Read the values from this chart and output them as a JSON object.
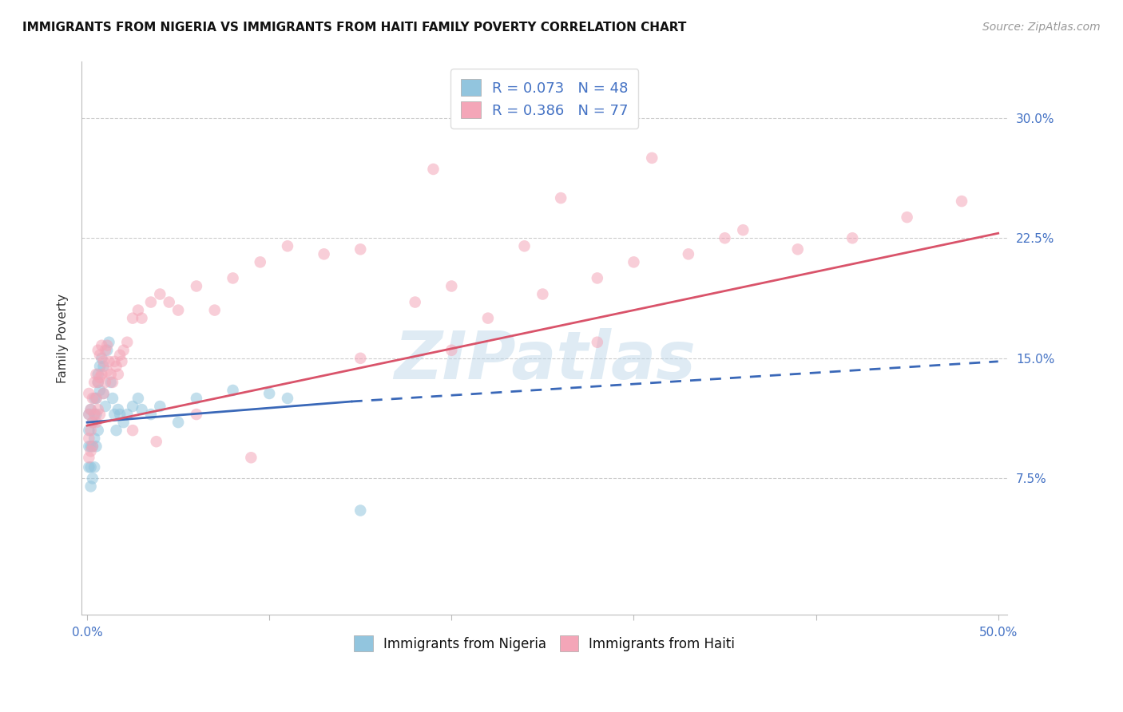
{
  "title": "IMMIGRANTS FROM NIGERIA VS IMMIGRANTS FROM HAITI FAMILY POVERTY CORRELATION CHART",
  "source": "Source: ZipAtlas.com",
  "ylabel": "Family Poverty",
  "ytick_vals": [
    0.075,
    0.15,
    0.225,
    0.3
  ],
  "ytick_labels": [
    "7.5%",
    "15.0%",
    "22.5%",
    "30.0%"
  ],
  "xlim": [
    -0.003,
    0.505
  ],
  "ylim": [
    -0.01,
    0.335
  ],
  "legend_r1": "R = 0.073",
  "legend_n1": "N = 48",
  "legend_r2": "R = 0.386",
  "legend_n2": "N = 77",
  "color_nigeria": "#92c5de",
  "color_haiti": "#f4a6b8",
  "color_nigeria_line": "#3a68b8",
  "color_haiti_line": "#d9536a",
  "watermark": "ZIPatlas",
  "nigeria_x": [
    0.001,
    0.001,
    0.001,
    0.001,
    0.002,
    0.002,
    0.002,
    0.002,
    0.003,
    0.003,
    0.003,
    0.004,
    0.004,
    0.004,
    0.004,
    0.005,
    0.005,
    0.005,
    0.006,
    0.006,
    0.006,
    0.007,
    0.007,
    0.008,
    0.009,
    0.009,
    0.01,
    0.011,
    0.012,
    0.013,
    0.014,
    0.015,
    0.016,
    0.017,
    0.018,
    0.02,
    0.022,
    0.025,
    0.028,
    0.03,
    0.035,
    0.04,
    0.05,
    0.06,
    0.08,
    0.1,
    0.11,
    0.15
  ],
  "nigeria_y": [
    0.115,
    0.105,
    0.095,
    0.082,
    0.118,
    0.095,
    0.082,
    0.07,
    0.11,
    0.095,
    0.075,
    0.125,
    0.115,
    0.1,
    0.082,
    0.125,
    0.115,
    0.095,
    0.14,
    0.135,
    0.105,
    0.145,
    0.13,
    0.15,
    0.145,
    0.128,
    0.12,
    0.155,
    0.16,
    0.135,
    0.125,
    0.115,
    0.105,
    0.118,
    0.115,
    0.11,
    0.115,
    0.12,
    0.125,
    0.118,
    0.115,
    0.12,
    0.11,
    0.125,
    0.13,
    0.128,
    0.125,
    0.055
  ],
  "nigeria_line_x0": 0.0,
  "nigeria_line_x_solid_end": 0.145,
  "nigeria_line_x_dashed_end": 0.5,
  "nigeria_line_y0": 0.11,
  "nigeria_line_y_solid_end": 0.123,
  "nigeria_line_y_dashed_end": 0.148,
  "haiti_x": [
    0.001,
    0.001,
    0.001,
    0.001,
    0.002,
    0.002,
    0.002,
    0.003,
    0.003,
    0.003,
    0.004,
    0.004,
    0.005,
    0.005,
    0.005,
    0.006,
    0.006,
    0.006,
    0.007,
    0.007,
    0.007,
    0.008,
    0.008,
    0.009,
    0.009,
    0.01,
    0.01,
    0.011,
    0.011,
    0.012,
    0.013,
    0.014,
    0.015,
    0.016,
    0.017,
    0.018,
    0.019,
    0.02,
    0.022,
    0.025,
    0.028,
    0.03,
    0.035,
    0.04,
    0.045,
    0.05,
    0.06,
    0.07,
    0.08,
    0.095,
    0.11,
    0.13,
    0.15,
    0.18,
    0.2,
    0.22,
    0.25,
    0.28,
    0.3,
    0.33,
    0.36,
    0.39,
    0.42,
    0.45,
    0.48,
    0.26,
    0.19,
    0.24,
    0.31,
    0.35,
    0.2,
    0.28,
    0.15,
    0.09,
    0.06,
    0.038,
    0.025
  ],
  "haiti_y": [
    0.128,
    0.115,
    0.1,
    0.088,
    0.118,
    0.105,
    0.092,
    0.125,
    0.11,
    0.095,
    0.135,
    0.115,
    0.14,
    0.125,
    0.11,
    0.155,
    0.135,
    0.118,
    0.152,
    0.138,
    0.115,
    0.158,
    0.14,
    0.148,
    0.128,
    0.155,
    0.135,
    0.158,
    0.142,
    0.148,
    0.14,
    0.135,
    0.148,
    0.145,
    0.14,
    0.152,
    0.148,
    0.155,
    0.16,
    0.175,
    0.18,
    0.175,
    0.185,
    0.19,
    0.185,
    0.18,
    0.195,
    0.18,
    0.2,
    0.21,
    0.22,
    0.215,
    0.218,
    0.185,
    0.195,
    0.175,
    0.19,
    0.2,
    0.21,
    0.215,
    0.23,
    0.218,
    0.225,
    0.238,
    0.248,
    0.25,
    0.268,
    0.22,
    0.275,
    0.225,
    0.155,
    0.16,
    0.15,
    0.088,
    0.115,
    0.098,
    0.105
  ],
  "haiti_line_x0": 0.0,
  "haiti_line_x_end": 0.5,
  "haiti_line_y0": 0.108,
  "haiti_line_y_end": 0.228
}
